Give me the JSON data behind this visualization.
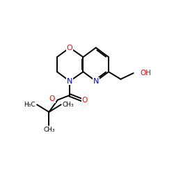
{
  "bg": "#ffffff",
  "lc": "#000000",
  "O_color": "#ff0000",
  "N_color": "#0000ff",
  "lw": 1.4,
  "fs": 7.0,
  "xlim": [
    0,
    10
  ],
  "ylim": [
    0,
    10
  ]
}
